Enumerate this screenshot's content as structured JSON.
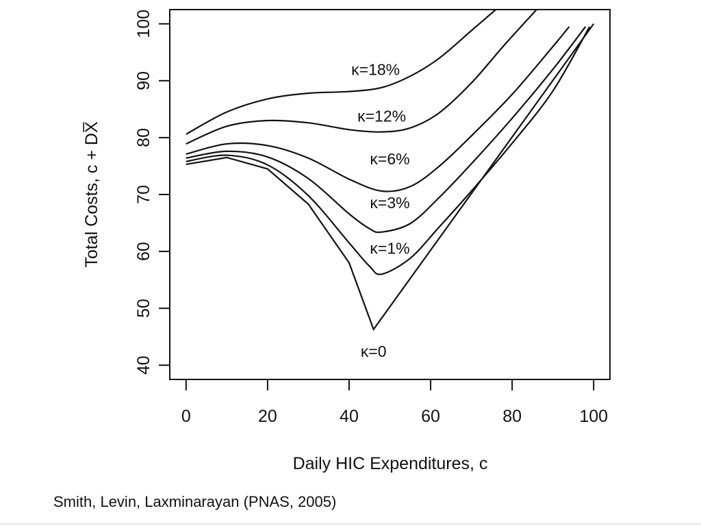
{
  "citation": "Smith, Levin, Laxminarayan (PNAS, 2005)",
  "chart_data": {
    "type": "line",
    "title": "",
    "xlabel": "Daily HIC Expenditures, c",
    "ylabel": "Total Costs, c + DX̅",
    "xlim": [
      -4,
      104
    ],
    "ylim": [
      37.5,
      102.5
    ],
    "xticks": [
      0,
      20,
      40,
      60,
      80,
      100
    ],
    "yticks": [
      40,
      50,
      60,
      70,
      80,
      90,
      100
    ],
    "grid": false,
    "legend": "none",
    "line_color": "#111111",
    "series": [
      {
        "name": "κ=18%",
        "x": [
          0,
          10,
          20,
          30,
          40,
          48,
          55,
          62,
          70,
          76
        ],
        "y": [
          80.6,
          84.5,
          86.8,
          87.8,
          88.1,
          88.8,
          90.8,
          93.9,
          98.8,
          102.5
        ]
      },
      {
        "name": "κ=12%",
        "x": [
          0,
          10,
          20,
          30,
          40,
          48,
          55,
          62,
          70,
          78,
          86
        ],
        "y": [
          78.9,
          82.0,
          83.0,
          82.6,
          81.4,
          81.0,
          81.7,
          84.3,
          89.6,
          96.2,
          102.5
        ]
      },
      {
        "name": "κ=6%",
        "x": [
          0,
          10,
          20,
          30,
          40,
          48,
          55,
          62,
          70,
          80,
          90,
          94
        ],
        "y": [
          77.1,
          78.9,
          78.6,
          76.4,
          72.7,
          70.6,
          71.4,
          74.9,
          80.3,
          87.6,
          96.0,
          99.5
        ]
      },
      {
        "name": "κ=3%",
        "x": [
          0,
          10,
          20,
          30,
          40,
          45,
          48,
          55,
          62,
          70,
          80,
          90,
          98
        ],
        "y": [
          76.4,
          77.6,
          76.6,
          72.8,
          66.6,
          64.0,
          63.4,
          64.9,
          69.4,
          75.4,
          83.4,
          92.0,
          99.5
        ]
      },
      {
        "name": "κ=1%",
        "x": [
          0,
          10,
          20,
          30,
          40,
          45,
          48,
          55,
          62,
          70,
          80,
          90,
          99
        ],
        "y": [
          75.8,
          76.9,
          75.2,
          69.8,
          61.5,
          57.4,
          56.0,
          58.8,
          64.2,
          70.6,
          79.0,
          88.2,
          99.5
        ]
      },
      {
        "name": "κ=0",
        "x": [
          0,
          10,
          20,
          30,
          40,
          46,
          100
        ],
        "y": [
          75.3,
          76.5,
          74.5,
          68.3,
          58.0,
          46.3,
          100.0
        ]
      }
    ],
    "annotations": [
      {
        "text": "κ=18%",
        "x": 46.5,
        "y": 91.0
      },
      {
        "text": "κ=12%",
        "x": 48.0,
        "y": 82.8
      },
      {
        "text": "κ=6%",
        "x": 50.0,
        "y": 75.3
      },
      {
        "text": "κ=3%",
        "x": 50.0,
        "y": 67.6
      },
      {
        "text": "κ=1%",
        "x": 50.0,
        "y": 59.6
      },
      {
        "text": "κ=0",
        "x": 46.0,
        "y": 41.5
      }
    ]
  }
}
